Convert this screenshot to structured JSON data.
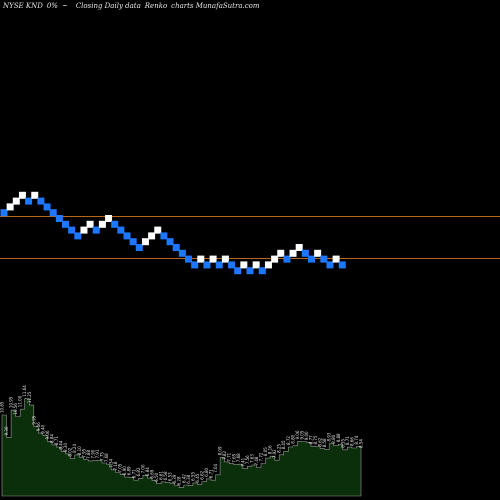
{
  "header": {
    "ticker": "NYSE KND",
    "change": "0%",
    "change_suffix": "~",
    "chart_kind": "Closing Daily data",
    "chart_name": "Renko",
    "source": "charts MunafaSutra.com"
  },
  "colors": {
    "background": "#000000",
    "up_brick": "#ffffff",
    "down_brick": "#1e78ff",
    "reference_line": "#b8661c",
    "volume_fill": "#0b2e0b",
    "volume_stroke": "#9a9a9a",
    "volume_label": "#e6e6e6"
  },
  "chart_data": {
    "type": "renko",
    "title": "",
    "grid": false,
    "reference_lines": [
      "upper",
      "lower"
    ],
    "bricks": [
      {
        "level": 1,
        "dir": "down"
      },
      {
        "level": 2,
        "dir": "up"
      },
      {
        "level": 3,
        "dir": "up"
      },
      {
        "level": 4,
        "dir": "up"
      },
      {
        "level": 3,
        "dir": "down"
      },
      {
        "level": 4,
        "dir": "up"
      },
      {
        "level": 3,
        "dir": "down"
      },
      {
        "level": 2,
        "dir": "down"
      },
      {
        "level": 1,
        "dir": "down"
      },
      {
        "level": 0,
        "dir": "down"
      },
      {
        "level": -1,
        "dir": "down"
      },
      {
        "level": -2,
        "dir": "down"
      },
      {
        "level": -3,
        "dir": "down"
      },
      {
        "level": -2,
        "dir": "up"
      },
      {
        "level": -1,
        "dir": "up"
      },
      {
        "level": -2,
        "dir": "down"
      },
      {
        "level": -1,
        "dir": "up"
      },
      {
        "level": 0,
        "dir": "up"
      },
      {
        "level": -1,
        "dir": "down"
      },
      {
        "level": -2,
        "dir": "down"
      },
      {
        "level": -3,
        "dir": "down"
      },
      {
        "level": -4,
        "dir": "down"
      },
      {
        "level": -5,
        "dir": "down"
      },
      {
        "level": -4,
        "dir": "up"
      },
      {
        "level": -3,
        "dir": "up"
      },
      {
        "level": -2,
        "dir": "up"
      },
      {
        "level": -3,
        "dir": "down"
      },
      {
        "level": -4,
        "dir": "down"
      },
      {
        "level": -5,
        "dir": "down"
      },
      {
        "level": -6,
        "dir": "down"
      },
      {
        "level": -7,
        "dir": "down"
      },
      {
        "level": -8,
        "dir": "down"
      },
      {
        "level": -7,
        "dir": "up"
      },
      {
        "level": -8,
        "dir": "down"
      },
      {
        "level": -7,
        "dir": "up"
      },
      {
        "level": -8,
        "dir": "down"
      },
      {
        "level": -7,
        "dir": "up"
      },
      {
        "level": -8,
        "dir": "down"
      },
      {
        "level": -9,
        "dir": "down"
      },
      {
        "level": -8,
        "dir": "up"
      },
      {
        "level": -9,
        "dir": "down"
      },
      {
        "level": -8,
        "dir": "up"
      },
      {
        "level": -9,
        "dir": "down"
      },
      {
        "level": -8,
        "dir": "up"
      },
      {
        "level": -7,
        "dir": "up"
      },
      {
        "level": -6,
        "dir": "up"
      },
      {
        "level": -7,
        "dir": "down"
      },
      {
        "level": -6,
        "dir": "up"
      },
      {
        "level": -5,
        "dir": "up"
      },
      {
        "level": -6,
        "dir": "down"
      },
      {
        "level": -7,
        "dir": "down"
      },
      {
        "level": -6,
        "dir": "up"
      },
      {
        "level": -7,
        "dir": "down"
      },
      {
        "level": -8,
        "dir": "down"
      },
      {
        "level": -7,
        "dir": "up"
      },
      {
        "level": -8,
        "dir": "down"
      }
    ],
    "volume_labels": [
      "10.65",
      "9.30",
      "10.95",
      "10.56",
      "11.00",
      "11.64",
      "11.25",
      "9.95",
      "9.56",
      "9.40",
      "9.06",
      "8.84",
      "8.71",
      "8.44",
      "8.30",
      "8.02",
      "8.24",
      "8.10",
      "7.95",
      "7.88",
      "7.90",
      "7.91",
      "7.75",
      "7.68",
      "7.34",
      "7.18",
      "7.05",
      "6.90",
      "6.89",
      "6.71",
      "6.82",
      "7.00",
      "6.84",
      "6.69",
      "6.50",
      "6.61",
      "6.58",
      "6.53",
      "6.39",
      "6.28",
      "6.42",
      "6.38",
      "6.55",
      "6.45",
      "6.62",
      "6.80",
      "6.71",
      "7.04",
      "8.09",
      "7.82",
      "7.71",
      "7.65",
      "7.68",
      "7.41",
      "7.56",
      "7.63",
      "7.48",
      "7.72",
      "8.05",
      "8.16",
      "7.92",
      "8.25",
      "8.45",
      "8.72",
      "8.80",
      "9.06",
      "9.05",
      "9.00",
      "8.77",
      "8.75",
      "8.62",
      "8.58",
      "8.93",
      "8.80",
      "8.88",
      "8.55",
      "8.71",
      "8.66",
      "8.74",
      "8.54"
    ]
  }
}
